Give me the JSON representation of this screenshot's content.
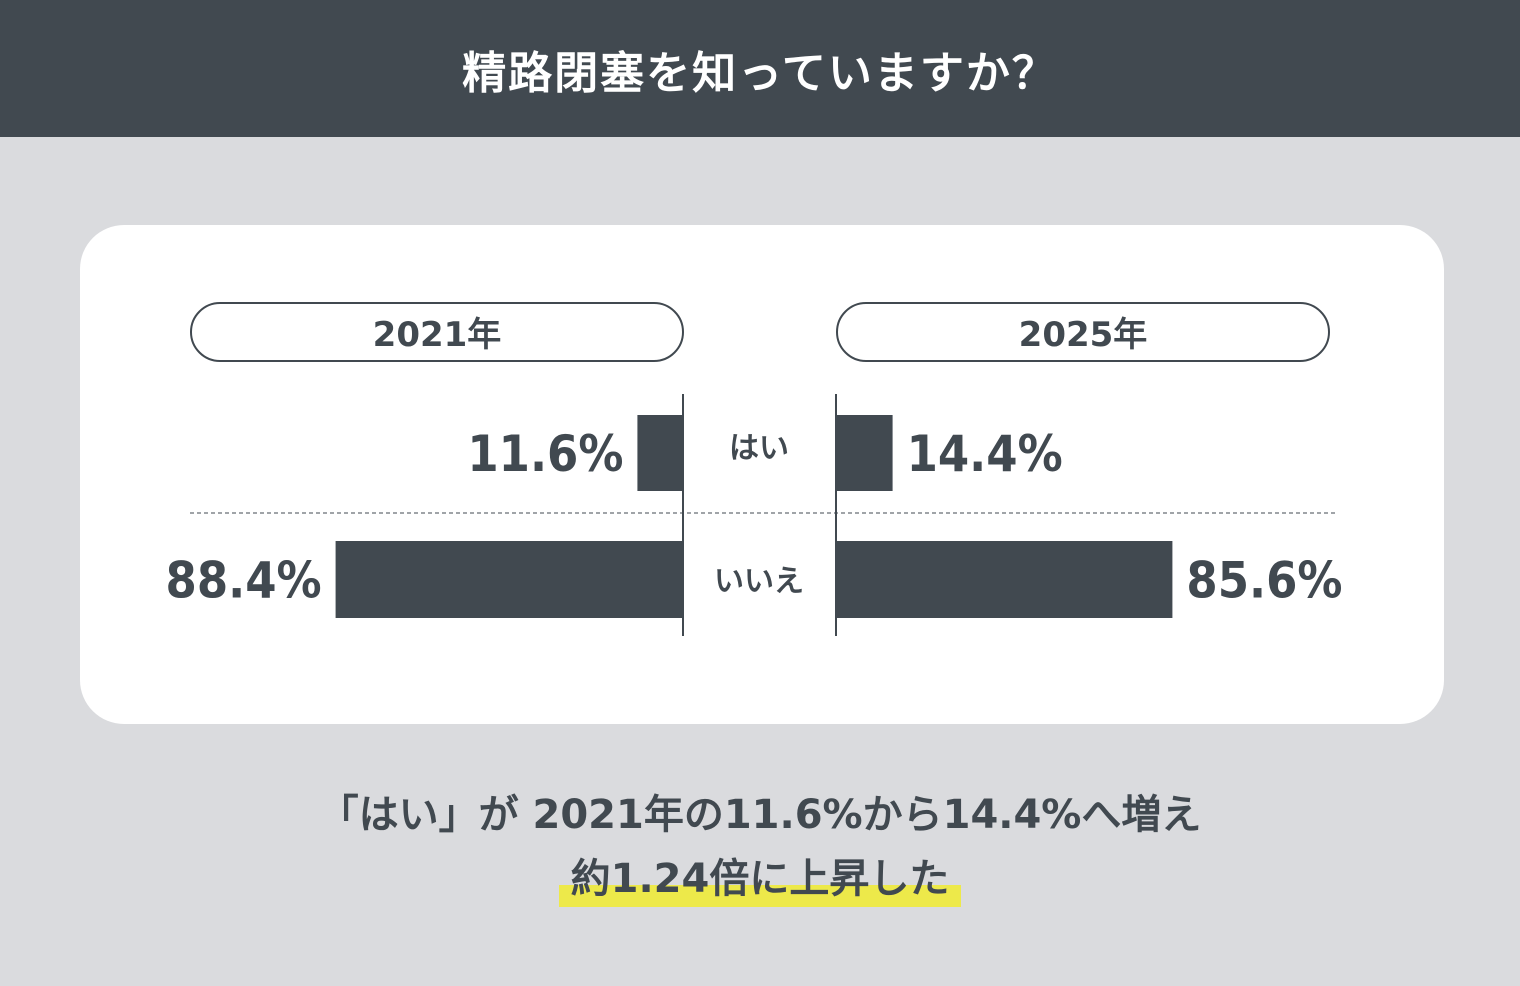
{
  "header": {
    "title": "精路閉塞を知っていますか？"
  },
  "colors": {
    "bar": "#414950",
    "header_bg": "#414950",
    "background": "#dadbde",
    "highlight": "#ede94a"
  },
  "chart_data": {
    "type": "bar",
    "orientation": "horizontal-butterfly",
    "categories": [
      "はい",
      "いいえ"
    ],
    "series": [
      {
        "name": "2021年",
        "values": [
          11.6,
          88.4
        ],
        "labels": [
          "11.6%",
          "88.4%"
        ]
      },
      {
        "name": "2025年",
        "values": [
          14.4,
          85.6
        ],
        "labels": [
          "14.4%",
          "85.6%"
        ]
      }
    ],
    "xlim": [
      0,
      100
    ],
    "unit": "%"
  },
  "summary": {
    "line1": "「はい」が 2021年の11.6%から14.4%へ増え",
    "line2": "約1.24倍に上昇した"
  }
}
